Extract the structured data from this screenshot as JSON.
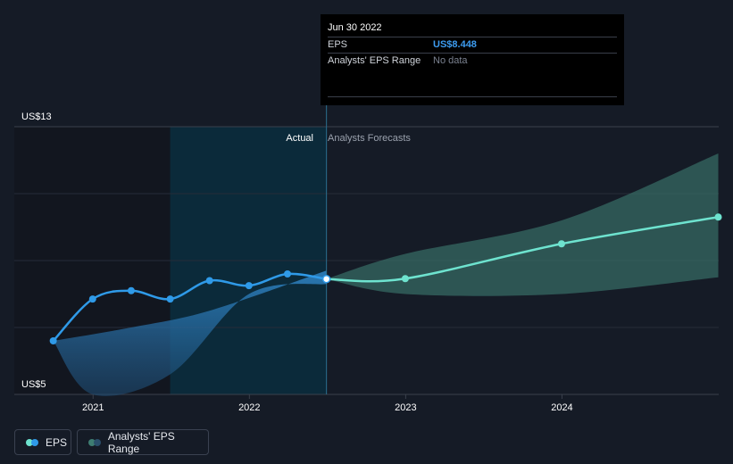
{
  "chart_data": {
    "type": "line",
    "y_axis": {
      "min_label": "US$5",
      "max_label": "US$13",
      "min": 5,
      "max": 13
    },
    "x_axis": {
      "ticks": [
        "2021",
        "2022",
        "2023",
        "2024"
      ]
    },
    "regions": {
      "actual_label": "Actual",
      "forecast_label": "Analysts Forecasts"
    },
    "series": [
      {
        "name": "EPS",
        "color": "#2f9ae8",
        "points": [
          {
            "x": "2020-09-30",
            "y": 6.6
          },
          {
            "x": "2020-12-31",
            "y": 7.85
          },
          {
            "x": "2021-03-31",
            "y": 8.1
          },
          {
            "x": "2021-06-30",
            "y": 7.85
          },
          {
            "x": "2021-09-30",
            "y": 8.4
          },
          {
            "x": "2021-12-31",
            "y": 8.25
          },
          {
            "x": "2022-03-31",
            "y": 8.6
          },
          {
            "x": "2022-06-30",
            "y": 8.448
          }
        ]
      },
      {
        "name": "EPS",
        "color": "#6ee3cf",
        "points": [
          {
            "x": "2022-06-30",
            "y": 8.448
          },
          {
            "x": "2022-12-31",
            "y": 8.46
          },
          {
            "x": "2023-12-31",
            "y": 9.5
          },
          {
            "x": "2024-12-31",
            "y": 10.3
          }
        ]
      }
    ],
    "ranges": [
      {
        "name": "Analysts' EPS Range",
        "color": "#2f7fb8",
        "upper": [
          {
            "x": "2020-09-30",
            "y": 6.6
          },
          {
            "x": "2021-03-31",
            "y": 7.0
          },
          {
            "x": "2021-09-30",
            "y": 7.5
          },
          {
            "x": "2022-06-30",
            "y": 8.7
          }
        ],
        "lower": [
          {
            "x": "2020-09-30",
            "y": 6.6
          },
          {
            "x": "2020-12-31",
            "y": 5.0
          },
          {
            "x": "2021-06-30",
            "y": 5.6
          },
          {
            "x": "2021-12-31",
            "y": 8.0
          },
          {
            "x": "2022-06-30",
            "y": 8.3
          }
        ]
      },
      {
        "name": "Analysts' EPS Range",
        "color": "#3e7d72",
        "upper": [
          {
            "x": "2022-06-30",
            "y": 8.448
          },
          {
            "x": "2022-12-31",
            "y": 9.2
          },
          {
            "x": "2023-12-31",
            "y": 10.2
          },
          {
            "x": "2024-12-31",
            "y": 12.2
          }
        ],
        "lower": [
          {
            "x": "2022-06-30",
            "y": 8.448
          },
          {
            "x": "2022-12-31",
            "y": 8.0
          },
          {
            "x": "2023-12-31",
            "y": 8.0
          },
          {
            "x": "2024-12-31",
            "y": 8.5
          }
        ]
      }
    ],
    "highlight_date": "2022-06-30",
    "shaded_from": "2021-06-30",
    "grid": true
  },
  "tooltip": {
    "date": "Jun 30 2022",
    "rows": [
      {
        "label": "EPS",
        "value": "US$8.448"
      },
      {
        "label": "Analysts' EPS Range",
        "value": "No data"
      }
    ]
  },
  "legend": [
    {
      "label": "EPS",
      "colors": [
        "#6ee3cf",
        "#2f9ae8"
      ]
    },
    {
      "label": "Analysts' EPS Range",
      "colors": [
        "#3e7d72",
        "#2a4f6b"
      ]
    }
  ]
}
